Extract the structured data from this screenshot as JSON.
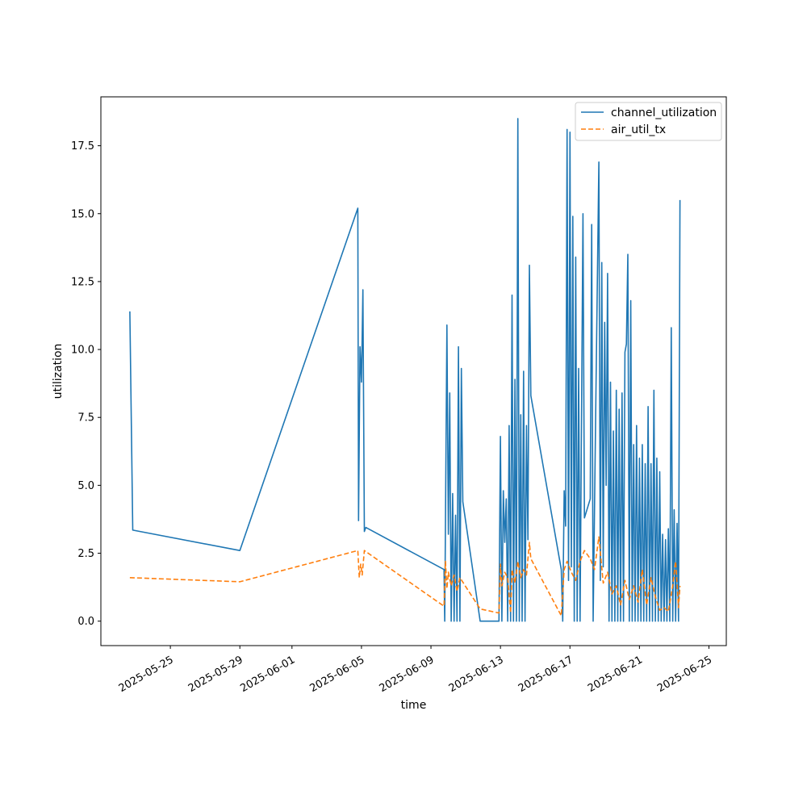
{
  "chart_data": {
    "type": "line",
    "xlabel": "time",
    "ylabel": "utilization",
    "xlim": [
      "2025-05-21",
      "2025-06-26"
    ],
    "ylim": [
      -0.9,
      19.3
    ],
    "x_ticks": [
      "2025-05-25",
      "2025-05-29",
      "2025-06-01",
      "2025-06-05",
      "2025-06-09",
      "2025-06-13",
      "2025-06-17",
      "2025-06-21",
      "2025-06-25"
    ],
    "y_ticks": [
      "0.0",
      "2.5",
      "5.0",
      "7.5",
      "10.0",
      "12.5",
      "15.0",
      "17.5"
    ],
    "legend": {
      "placement": "top-right",
      "entries": [
        "channel_utilization",
        "air_util_tx"
      ]
    },
    "grid": false,
    "series": [
      {
        "name": "channel_utilization",
        "color": "#1f77b4",
        "style": "solid",
        "points": [
          [
            "2025-05-22 16:00",
            11.4
          ],
          [
            "2025-05-22 20:00",
            3.35
          ],
          [
            "2025-05-29 00:00",
            2.6
          ],
          [
            "2025-06-04 19:00",
            15.2
          ],
          [
            "2025-06-04 20:00",
            3.7
          ],
          [
            "2025-06-04 22:00",
            10.1
          ],
          [
            "2025-06-05 00:00",
            8.8
          ],
          [
            "2025-06-05 02:00",
            12.2
          ],
          [
            "2025-06-05 04:00",
            3.3
          ],
          [
            "2025-06-05 06:00",
            3.45
          ],
          [
            "2025-06-09 18:00",
            1.9
          ],
          [
            "2025-06-09 19:00",
            0.0
          ],
          [
            "2025-06-09 22:00",
            10.9
          ],
          [
            "2025-06-10 00:00",
            3.2
          ],
          [
            "2025-06-10 02:00",
            8.4
          ],
          [
            "2025-06-10 04:00",
            0.0
          ],
          [
            "2025-06-10 06:00",
            4.7
          ],
          [
            "2025-06-10 08:00",
            0.0
          ],
          [
            "2025-06-10 10:00",
            3.9
          ],
          [
            "2025-06-10 12:00",
            0.0
          ],
          [
            "2025-06-10 14:00",
            10.1
          ],
          [
            "2025-06-10 16:00",
            0.0
          ],
          [
            "2025-06-10 18:00",
            9.3
          ],
          [
            "2025-06-10 20:00",
            4.4
          ],
          [
            "2025-06-11 20:00",
            0.0
          ],
          [
            "2025-06-12 22:00",
            0.0
          ],
          [
            "2025-06-13 00:00",
            6.8
          ],
          [
            "2025-06-13 02:00",
            0.0
          ],
          [
            "2025-06-13 04:00",
            4.8
          ],
          [
            "2025-06-13 06:00",
            2.9
          ],
          [
            "2025-06-13 08:00",
            4.5
          ],
          [
            "2025-06-13 10:00",
            0.0
          ],
          [
            "2025-06-13 12:00",
            7.2
          ],
          [
            "2025-06-13 14:00",
            0.0
          ],
          [
            "2025-06-13 16:00",
            12.0
          ],
          [
            "2025-06-13 18:00",
            0.0
          ],
          [
            "2025-06-13 20:00",
            8.9
          ],
          [
            "2025-06-13 22:00",
            0.0
          ],
          [
            "2025-06-14 00:00",
            18.5
          ],
          [
            "2025-06-14 02:00",
            0.0
          ],
          [
            "2025-06-14 04:00",
            7.6
          ],
          [
            "2025-06-14 06:00",
            0.0
          ],
          [
            "2025-06-14 08:00",
            9.2
          ],
          [
            "2025-06-14 10:00",
            0.0
          ],
          [
            "2025-06-14 12:00",
            7.2
          ],
          [
            "2025-06-14 14:00",
            3.0
          ],
          [
            "2025-06-14 16:00",
            13.1
          ],
          [
            "2025-06-14 18:00",
            8.3
          ],
          [
            "2025-06-16 12:00",
            1.9
          ],
          [
            "2025-06-16 14:00",
            0.0
          ],
          [
            "2025-06-16 16:00",
            4.8
          ],
          [
            "2025-06-16 18:00",
            3.5
          ],
          [
            "2025-06-16 20:00",
            18.1
          ],
          [
            "2025-06-16 22:00",
            1.5
          ],
          [
            "2025-06-17 00:00",
            18.0
          ],
          [
            "2025-06-17 02:00",
            2.0
          ],
          [
            "2025-06-17 04:00",
            14.9
          ],
          [
            "2025-06-17 06:00",
            0.0
          ],
          [
            "2025-06-17 08:00",
            13.4
          ],
          [
            "2025-06-17 10:00",
            0.0
          ],
          [
            "2025-06-17 12:00",
            9.3
          ],
          [
            "2025-06-17 14:00",
            0.0
          ],
          [
            "2025-06-17 18:00",
            15.0
          ],
          [
            "2025-06-17 20:00",
            3.8
          ],
          [
            "2025-06-18 04:00",
            4.5
          ],
          [
            "2025-06-18 06:00",
            14.6
          ],
          [
            "2025-06-18 08:00",
            0.0
          ],
          [
            "2025-06-18 12:00",
            8.5
          ],
          [
            "2025-06-18 16:00",
            16.9
          ],
          [
            "2025-06-18 18:00",
            1.5
          ],
          [
            "2025-06-18 20:00",
            13.2
          ],
          [
            "2025-06-18 22:00",
            2.0
          ],
          [
            "2025-06-19 00:00",
            11.0
          ],
          [
            "2025-06-19 02:00",
            5.0
          ],
          [
            "2025-06-19 04:00",
            12.8
          ],
          [
            "2025-06-19 06:00",
            0.0
          ],
          [
            "2025-06-19 08:00",
            8.8
          ],
          [
            "2025-06-19 10:00",
            0.0
          ],
          [
            "2025-06-19 12:00",
            7.0
          ],
          [
            "2025-06-19 14:00",
            0.0
          ],
          [
            "2025-06-19 16:00",
            8.5
          ],
          [
            "2025-06-19 18:00",
            0.0
          ],
          [
            "2025-06-19 20:00",
            7.8
          ],
          [
            "2025-06-19 22:00",
            0.0
          ],
          [
            "2025-06-20 00:00",
            8.4
          ],
          [
            "2025-06-20 02:00",
            0.0
          ],
          [
            "2025-06-20 04:00",
            9.9
          ],
          [
            "2025-06-20 06:00",
            10.2
          ],
          [
            "2025-06-20 08:00",
            13.5
          ],
          [
            "2025-06-20 10:00",
            0.0
          ],
          [
            "2025-06-20 12:00",
            11.8
          ],
          [
            "2025-06-20 14:00",
            0.0
          ],
          [
            "2025-06-20 16:00",
            6.5
          ],
          [
            "2025-06-20 18:00",
            0.0
          ],
          [
            "2025-06-20 20:00",
            7.2
          ],
          [
            "2025-06-20 22:00",
            0.0
          ],
          [
            "2025-06-21 00:00",
            6.0
          ],
          [
            "2025-06-21 02:00",
            0.0
          ],
          [
            "2025-06-21 04:00",
            6.5
          ],
          [
            "2025-06-21 06:00",
            0.0
          ],
          [
            "2025-06-21 08:00",
            5.8
          ],
          [
            "2025-06-21 10:00",
            0.0
          ],
          [
            "2025-06-21 12:00",
            7.9
          ],
          [
            "2025-06-21 14:00",
            0.0
          ],
          [
            "2025-06-21 16:00",
            5.8
          ],
          [
            "2025-06-21 18:00",
            0.0
          ],
          [
            "2025-06-21 20:00",
            8.5
          ],
          [
            "2025-06-21 22:00",
            0.0
          ],
          [
            "2025-06-22 00:00",
            6.0
          ],
          [
            "2025-06-22 02:00",
            0.0
          ],
          [
            "2025-06-22 04:00",
            5.5
          ],
          [
            "2025-06-22 06:00",
            0.0
          ],
          [
            "2025-06-22 08:00",
            3.2
          ],
          [
            "2025-06-22 10:00",
            0.0
          ],
          [
            "2025-06-22 12:00",
            3.0
          ],
          [
            "2025-06-22 14:00",
            0.0
          ],
          [
            "2025-06-22 16:00",
            3.4
          ],
          [
            "2025-06-22 18:00",
            0.0
          ],
          [
            "2025-06-22 20:00",
            10.8
          ],
          [
            "2025-06-22 22:00",
            0.0
          ],
          [
            "2025-06-23 00:00",
            4.1
          ],
          [
            "2025-06-23 02:00",
            0.0
          ],
          [
            "2025-06-23 04:00",
            3.6
          ],
          [
            "2025-06-23 06:00",
            0.0
          ],
          [
            "2025-06-23 08:00",
            15.5
          ]
        ]
      },
      {
        "name": "air_util_tx",
        "color": "#ff7f0e",
        "style": "dashed",
        "points": [
          [
            "2025-05-22 16:00",
            1.6
          ],
          [
            "2025-05-29 00:00",
            1.45
          ],
          [
            "2025-06-04 19:00",
            2.6
          ],
          [
            "2025-06-04 21:00",
            1.6
          ],
          [
            "2025-06-04 23:00",
            2.1
          ],
          [
            "2025-06-05 01:00",
            1.7
          ],
          [
            "2025-06-05 04:00",
            2.6
          ],
          [
            "2025-06-09 18:00",
            0.55
          ],
          [
            "2025-06-09 20:00",
            2.2
          ],
          [
            "2025-06-09 22:00",
            1.2
          ],
          [
            "2025-06-10 00:00",
            1.8
          ],
          [
            "2025-06-10 04:00",
            1.3
          ],
          [
            "2025-06-10 08:00",
            1.7
          ],
          [
            "2025-06-10 12:00",
            1.1
          ],
          [
            "2025-06-10 16:00",
            1.6
          ],
          [
            "2025-06-11 20:00",
            0.45
          ],
          [
            "2025-06-12 22:00",
            0.3
          ],
          [
            "2025-06-13 00:00",
            2.1
          ],
          [
            "2025-06-13 02:00",
            1.3
          ],
          [
            "2025-06-13 06:00",
            1.8
          ],
          [
            "2025-06-13 10:00",
            1.6
          ],
          [
            "2025-06-13 14:00",
            0.3
          ],
          [
            "2025-06-13 16:00",
            1.9
          ],
          [
            "2025-06-13 20:00",
            1.4
          ],
          [
            "2025-06-14 00:00",
            2.2
          ],
          [
            "2025-06-14 04:00",
            1.6
          ],
          [
            "2025-06-14 08:00",
            1.9
          ],
          [
            "2025-06-14 12:00",
            1.7
          ],
          [
            "2025-06-14 16:00",
            2.9
          ],
          [
            "2025-06-14 18:00",
            2.3
          ],
          [
            "2025-06-16 12:00",
            0.2
          ],
          [
            "2025-06-16 16:00",
            1.9
          ],
          [
            "2025-06-16 20:00",
            2.2
          ],
          [
            "2025-06-17 02:00",
            1.8
          ],
          [
            "2025-06-17 08:00",
            1.5
          ],
          [
            "2025-06-17 14:00",
            2.2
          ],
          [
            "2025-06-17 20:00",
            2.6
          ],
          [
            "2025-06-18 04:00",
            2.3
          ],
          [
            "2025-06-18 10:00",
            1.9
          ],
          [
            "2025-06-18 16:00",
            3.1
          ],
          [
            "2025-06-18 22:00",
            1.4
          ],
          [
            "2025-06-19 04:00",
            1.8
          ],
          [
            "2025-06-19 10:00",
            1.0
          ],
          [
            "2025-06-19 16:00",
            1.3
          ],
          [
            "2025-06-19 22:00",
            0.6
          ],
          [
            "2025-06-20 04:00",
            1.5
          ],
          [
            "2025-06-20 10:00",
            0.8
          ],
          [
            "2025-06-20 16:00",
            1.3
          ],
          [
            "2025-06-20 22:00",
            0.7
          ],
          [
            "2025-06-21 04:00",
            1.9
          ],
          [
            "2025-06-21 10:00",
            0.6
          ],
          [
            "2025-06-21 16:00",
            1.6
          ],
          [
            "2025-06-21 22:00",
            0.9
          ],
          [
            "2025-06-22 04:00",
            0.4
          ],
          [
            "2025-06-22 10:00",
            0.5
          ],
          [
            "2025-06-22 16:00",
            0.35
          ],
          [
            "2025-06-22 22:00",
            1.3
          ],
          [
            "2025-06-23 02:00",
            2.2
          ],
          [
            "2025-06-23 06:00",
            0.5
          ],
          [
            "2025-06-23 08:00",
            1.3
          ]
        ]
      }
    ]
  }
}
